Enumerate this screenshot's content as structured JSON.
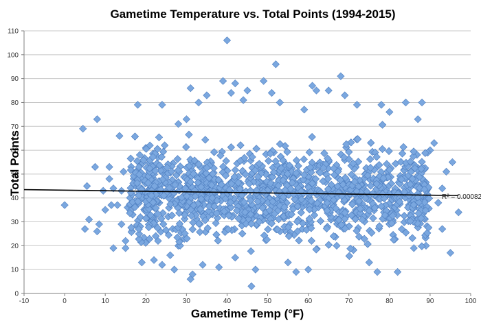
{
  "chart_data": {
    "type": "scatter",
    "title": "Gametime Temperature vs. Total Points (1994-2015)",
    "xlabel": "Gametime Temp (°F)",
    "ylabel": "Total Points",
    "xlim": [
      -10,
      100
    ],
    "ylim": [
      0,
      110
    ],
    "xticks": [
      "-10",
      "0",
      "10",
      "20",
      "30",
      "40",
      "50",
      "60",
      "70",
      "80",
      "90",
      "100"
    ],
    "yticks": [
      "0",
      "10",
      "20",
      "30",
      "40",
      "50",
      "60",
      "70",
      "80",
      "90",
      "100",
      "110"
    ],
    "grid": "horizontal",
    "legend": "none",
    "marker": "diamond",
    "marker_color": "#7aa7df",
    "marker_edge_color": "#4f7fc0",
    "trendline": {
      "type": "linear",
      "start": [
        -10,
        43.5
      ],
      "end": [
        97,
        41
      ],
      "color": "#000000",
      "label": "R² = 0.00082"
    },
    "cluster": {
      "x_range": [
        20,
        90
      ],
      "y_center": 42,
      "y_spread": 14
    },
    "points": [
      [
        0,
        37
      ],
      [
        4.5,
        69
      ],
      [
        5,
        27
      ],
      [
        5.5,
        45
      ],
      [
        6,
        31
      ],
      [
        7.5,
        53
      ],
      [
        8,
        73
      ],
      [
        8,
        26
      ],
      [
        8.5,
        29
      ],
      [
        9.5,
        43
      ],
      [
        10,
        35
      ],
      [
        11,
        53
      ],
      [
        11,
        48
      ],
      [
        11.5,
        37
      ],
      [
        12,
        19
      ],
      [
        12,
        44
      ],
      [
        13,
        37
      ],
      [
        13.5,
        66
      ],
      [
        14,
        43
      ],
      [
        14,
        29
      ],
      [
        14.5,
        51
      ],
      [
        15,
        22
      ],
      [
        15,
        19
      ],
      [
        15.5,
        36
      ],
      [
        16,
        37
      ],
      [
        17,
        48
      ],
      [
        17.5,
        45
      ],
      [
        18,
        79
      ],
      [
        18.5,
        58
      ],
      [
        19,
        13
      ],
      [
        19,
        50
      ],
      [
        20,
        61
      ],
      [
        20,
        40
      ],
      [
        21,
        62
      ],
      [
        21,
        31
      ],
      [
        22,
        14
      ],
      [
        22,
        47
      ],
      [
        23,
        22
      ],
      [
        23,
        57
      ],
      [
        24,
        79
      ],
      [
        24,
        12
      ],
      [
        26,
        16
      ],
      [
        27,
        10
      ],
      [
        28,
        71
      ],
      [
        28,
        20
      ],
      [
        30,
        73
      ],
      [
        31,
        86
      ],
      [
        31,
        6
      ],
      [
        31.5,
        8
      ],
      [
        33,
        80
      ],
      [
        34,
        12
      ],
      [
        35,
        83
      ],
      [
        38,
        11
      ],
      [
        39,
        89
      ],
      [
        40,
        106
      ],
      [
        41,
        84
      ],
      [
        42,
        88
      ],
      [
        42,
        15
      ],
      [
        44,
        81
      ],
      [
        45,
        85
      ],
      [
        46,
        3
      ],
      [
        47,
        10
      ],
      [
        49,
        89
      ],
      [
        51,
        84
      ],
      [
        52,
        96
      ],
      [
        53,
        80
      ],
      [
        55,
        13
      ],
      [
        57,
        9
      ],
      [
        59,
        77
      ],
      [
        60,
        10
      ],
      [
        61,
        87
      ],
      [
        62,
        85
      ],
      [
        65,
        85
      ],
      [
        67,
        20
      ],
      [
        68,
        91
      ],
      [
        69,
        83
      ],
      [
        72,
        79
      ],
      [
        75,
        13
      ],
      [
        77,
        9
      ],
      [
        78,
        79
      ],
      [
        80,
        76
      ],
      [
        82,
        9
      ],
      [
        84,
        80
      ],
      [
        86,
        19
      ],
      [
        87,
        73
      ],
      [
        88,
        80
      ],
      [
        89,
        20
      ],
      [
        90,
        60
      ],
      [
        91,
        63
      ],
      [
        92,
        38
      ],
      [
        93,
        44
      ],
      [
        93,
        27
      ],
      [
        94,
        51
      ],
      [
        95,
        17
      ],
      [
        95.5,
        55
      ],
      [
        97,
        34
      ]
    ]
  }
}
